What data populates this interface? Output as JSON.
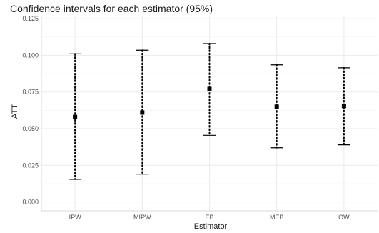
{
  "chart_data": {
    "type": "scatter",
    "title": "Confidence intervals for each estimator (95%)",
    "xlabel": "Estimator",
    "ylabel": "ATT",
    "ylim": [
      -0.006,
      0.127
    ],
    "yticks": [
      0.0,
      0.025,
      0.05,
      0.075,
      0.1,
      0.125
    ],
    "ytick_labels": [
      "0.000",
      "0.025",
      "0.050",
      "0.075",
      "0.100",
      "0.125"
    ],
    "categories": [
      "IPW",
      "MIPW",
      "EB",
      "MEB",
      "OW"
    ],
    "estimates": [
      0.058,
      0.061,
      0.077,
      0.065,
      0.0655
    ],
    "lower": [
      0.0155,
      0.019,
      0.0455,
      0.037,
      0.039
    ],
    "upper": [
      0.101,
      0.1035,
      0.108,
      0.0935,
      0.0915
    ],
    "grid": true,
    "colors": {
      "point": "#000000",
      "grid": "#ebebeb",
      "text": "#4d4d4d"
    }
  }
}
